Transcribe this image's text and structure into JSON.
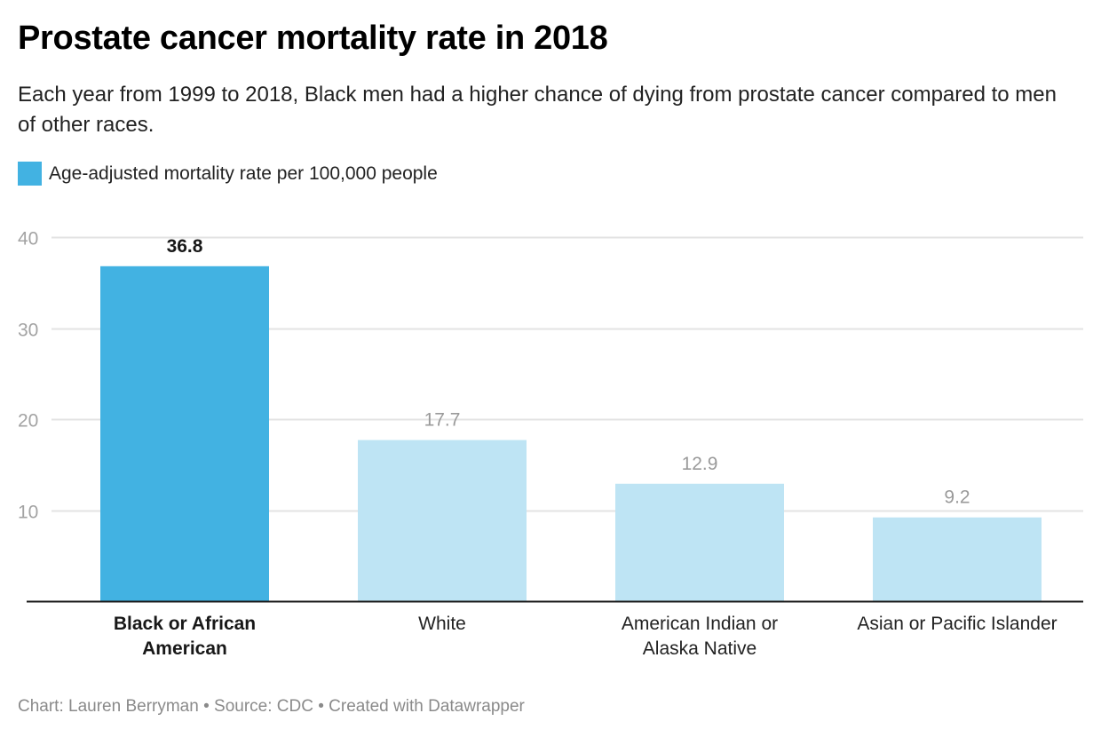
{
  "chart_data": {
    "type": "bar",
    "title": "Prostate cancer mortality rate in 2018",
    "subtitle": "Each year from 1999 to 2018, Black men had a higher chance of dying from prostate cancer compared to men of other races.",
    "legend": [
      {
        "label": "Age-adjusted mortality rate per 100,000 people",
        "color": "#42b2e2"
      }
    ],
    "legend_position": "top-left",
    "categories": [
      [
        "Black or African",
        "American"
      ],
      [
        "White"
      ],
      [
        "American Indian or",
        "Alaska Native"
      ],
      [
        "Asian or Pacific Islander"
      ]
    ],
    "series": [
      {
        "name": "Age-adjusted mortality rate per 100,000 people",
        "values": [
          36.8,
          17.7,
          12.9,
          9.2
        ]
      }
    ],
    "value_labels": [
      "36.8",
      "17.7",
      "12.9",
      "9.2"
    ],
    "highlighted_index": 0,
    "colors": {
      "highlight": "#42b2e2",
      "default": "#bee4f4"
    },
    "yticks": [
      10,
      20,
      30,
      40
    ],
    "ylim": [
      0,
      40
    ],
    "xlabel": "",
    "ylabel": "",
    "grid": true
  },
  "footer": "Chart: Lauren Berryman • Source: CDC • Created with Datawrapper"
}
